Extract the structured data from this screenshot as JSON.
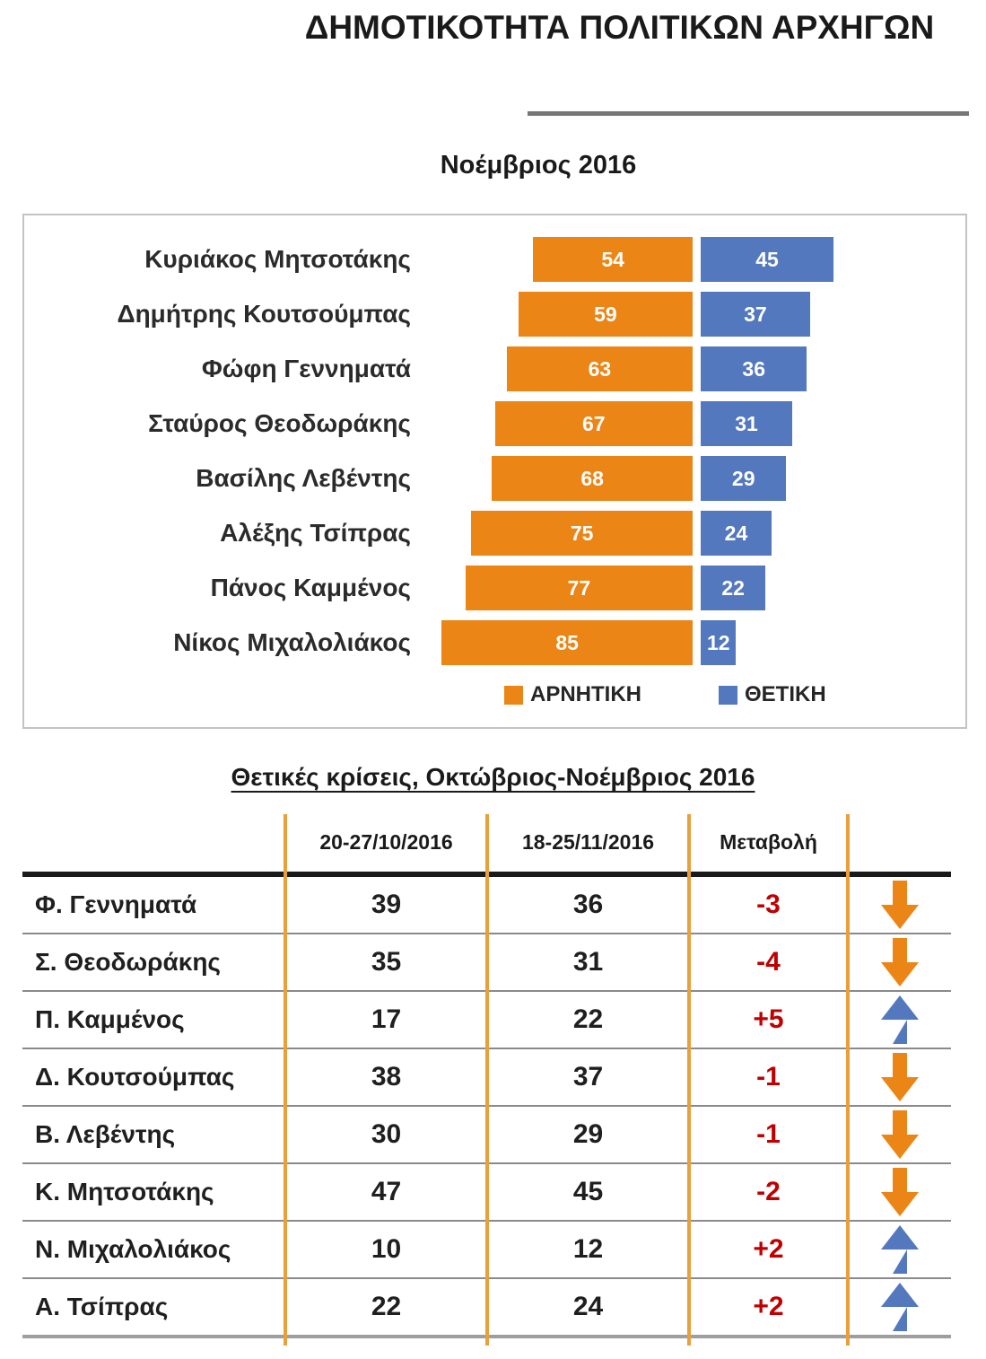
{
  "page": {
    "title": "ΔΗΜΟΤΙΚΟΤΗΤΑ ΠΟΛΙΤΙΚΩΝ ΑΡΧΗΓΩΝ",
    "subtitle": "Νοέμβριος 2016"
  },
  "colors": {
    "negative": "#eb8516",
    "positive": "#5478be",
    "change_text": "#c00000",
    "divider": "#e9a03c"
  },
  "chart_data": [
    {
      "type": "bar",
      "orientation": "horizontal-diverging",
      "title": "Νοέμβριος 2016",
      "categories": [
        "Κυριάκος Μητσοτάκης",
        "Δημήτρης Κουτσούμπας",
        "Φώφη Γεννηματά",
        "Σταύρος Θεοδωράκης",
        "Βασίλης Λεβέντης",
        "Αλέξης Τσίπρας",
        "Πάνος Καμμένος",
        "Νίκος Μιχαλολιάκος"
      ],
      "series": [
        {
          "name": "ΑΡΝΗΤΙΚΗ",
          "color": "#eb8516",
          "values": [
            54,
            59,
            63,
            67,
            68,
            75,
            77,
            85
          ]
        },
        {
          "name": "ΘΕΤΙΚΗ",
          "color": "#5478be",
          "values": [
            45,
            37,
            36,
            31,
            29,
            24,
            22,
            12
          ]
        }
      ],
      "value_labels": "inside-white",
      "legend_position": "bottom",
      "xlim": [
        0,
        100
      ]
    },
    {
      "type": "table",
      "title": "Θετικές κρίσεις, Οκτώβριος-Νοέμβριος 2016",
      "columns": [
        "",
        "20-27/10/2016",
        "18-25/11/2016",
        "Μεταβολή",
        ""
      ],
      "rows": [
        {
          "name": "Φ. Γεννηματά",
          "oct": 39,
          "nov": 36,
          "change": "-3",
          "direction": "down"
        },
        {
          "name": "Σ. Θεοδωράκης",
          "oct": 35,
          "nov": 31,
          "change": "-4",
          "direction": "down"
        },
        {
          "name": "Π. Καμμένος",
          "oct": 17,
          "nov": 22,
          "change": "+5",
          "direction": "up"
        },
        {
          "name": "Δ. Κουτσούμπας",
          "oct": 38,
          "nov": 37,
          "change": "-1",
          "direction": "down"
        },
        {
          "name": "Β. Λεβέντης",
          "oct": 30,
          "nov": 29,
          "change": "-1",
          "direction": "down"
        },
        {
          "name": "Κ. Μητσοτάκης",
          "oct": 47,
          "nov": 45,
          "change": "-2",
          "direction": "down"
        },
        {
          "name": "Ν. Μιχαλολιάκος",
          "oct": 10,
          "nov": 12,
          "change": "+2",
          "direction": "up"
        },
        {
          "name": "Α. Τσίπρας",
          "oct": 22,
          "nov": 24,
          "change": "+2",
          "direction": "up"
        }
      ]
    }
  ]
}
